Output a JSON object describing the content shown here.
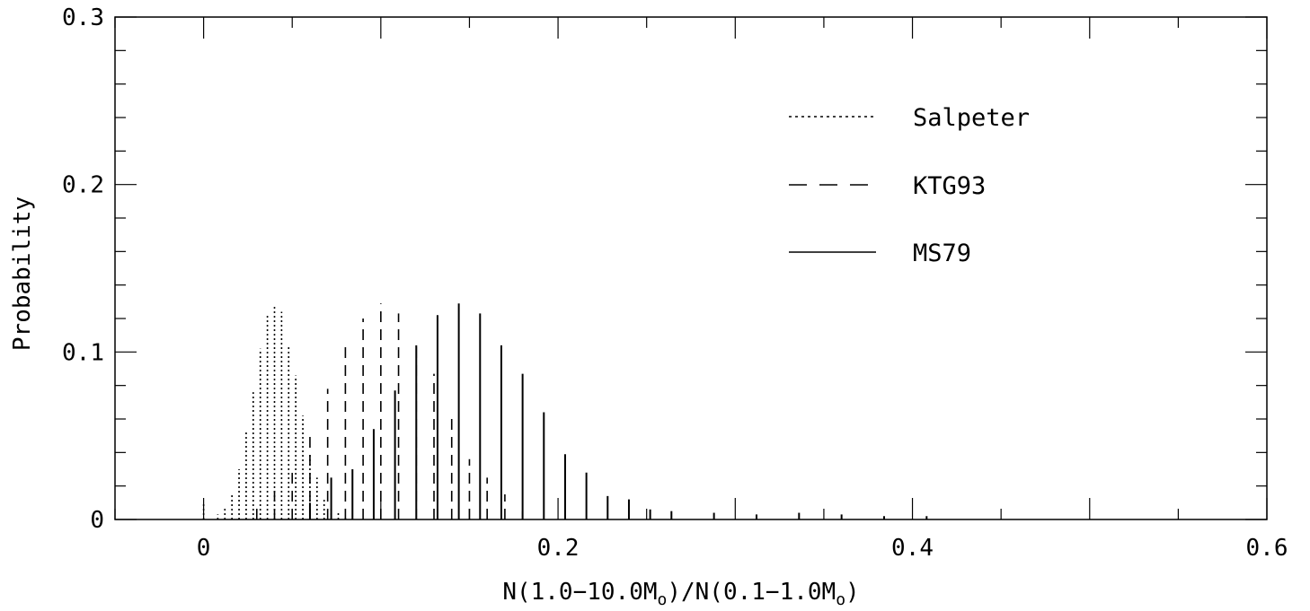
{
  "chart_data": {
    "type": "bar",
    "xlabel": "N(1.0−10.0M",
    "xlabel_sub": "o",
    "xlabel_mid": ")/N(0.1−1.0M",
    "xlabel_end": ")",
    "ylabel": "Probability",
    "xlim": [
      -0.05,
      0.6
    ],
    "ylim": [
      0,
      0.3
    ],
    "x_ticks": [
      {
        "value": 0,
        "label": "0"
      },
      {
        "value": 0.2,
        "label": "0.2"
      },
      {
        "value": 0.4,
        "label": "0.4"
      },
      {
        "value": 0.6,
        "label": "0.6"
      }
    ],
    "y_ticks": [
      {
        "value": 0,
        "label": "0"
      },
      {
        "value": 0.1,
        "label": "0.1"
      },
      {
        "value": 0.2,
        "label": "0.2"
      },
      {
        "value": 0.3,
        "label": "0.3"
      }
    ],
    "legend_position": "top-right",
    "series": [
      {
        "name": "Salpeter",
        "style": "dotted",
        "x": [
          0.0,
          0.008,
          0.012,
          0.016,
          0.02,
          0.024,
          0.028,
          0.032,
          0.036,
          0.04,
          0.044,
          0.048,
          0.052,
          0.056,
          0.06,
          0.064,
          0.068,
          0.072,
          0.076,
          0.08
        ],
        "values": [
          0.01,
          0.003,
          0.008,
          0.015,
          0.03,
          0.052,
          0.076,
          0.102,
          0.122,
          0.127,
          0.124,
          0.103,
          0.086,
          0.062,
          0.04,
          0.025,
          0.012,
          0.008,
          0.004,
          0.002
        ]
      },
      {
        "name": "KTG93",
        "style": "dashed",
        "x": [
          0.03,
          0.04,
          0.05,
          0.06,
          0.07,
          0.08,
          0.09,
          0.1,
          0.11,
          0.12,
          0.13,
          0.14,
          0.15,
          0.16,
          0.17,
          0.18
        ],
        "values": [
          0.01,
          0.02,
          0.03,
          0.05,
          0.078,
          0.104,
          0.12,
          0.129,
          0.123,
          0.103,
          0.087,
          0.061,
          0.036,
          0.025,
          0.015,
          0.005
        ]
      },
      {
        "name": "MS79",
        "style": "solid",
        "x": [
          0.06,
          0.072,
          0.084,
          0.096,
          0.108,
          0.12,
          0.132,
          0.144,
          0.156,
          0.168,
          0.18,
          0.192,
          0.204,
          0.216,
          0.228,
          0.24,
          0.252,
          0.264,
          0.288,
          0.312,
          0.336,
          0.36,
          0.384,
          0.408
        ],
        "values": [
          0.01,
          0.025,
          0.03,
          0.054,
          0.077,
          0.104,
          0.122,
          0.129,
          0.123,
          0.104,
          0.087,
          0.064,
          0.039,
          0.028,
          0.014,
          0.012,
          0.006,
          0.005,
          0.004,
          0.003,
          0.004,
          0.003,
          0.002,
          0.002
        ]
      }
    ]
  }
}
